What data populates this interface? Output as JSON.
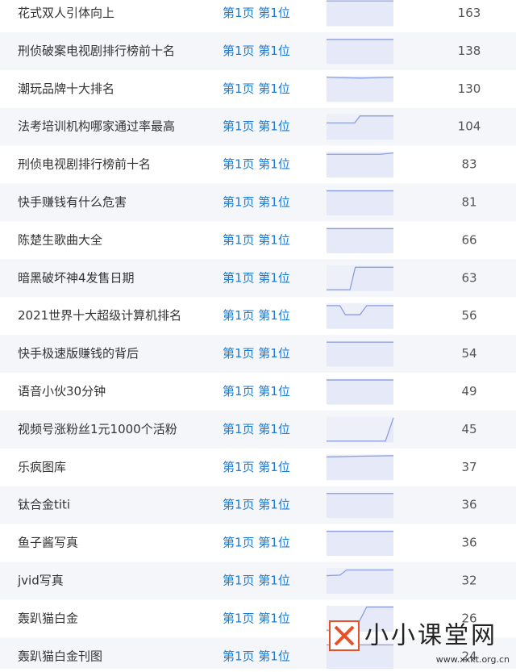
{
  "table": {
    "rows": [
      [
        "花式双人引体向上",
        "第1页 第1位",
        163
      ],
      [
        "刑侦破案电视剧排行榜前十名",
        "第1页 第1位",
        138
      ],
      [
        "潮玩品牌十大排名",
        "第1页 第1位",
        130
      ],
      [
        "法考培训机构哪家通过率最高",
        "第1页 第1位",
        104
      ],
      [
        "刑侦电视剧排行榜前十名",
        "第1页 第1位",
        83
      ],
      [
        "快手赚钱有什么危害",
        "第1页 第1位",
        81
      ],
      [
        "陈楚生歌曲大全",
        "第1页 第1位",
        66
      ],
      [
        "暗黑破坏神4发售日期",
        "第1页 第1位",
        63
      ],
      [
        "2021世界十大超级计算机排名",
        "第1页 第1位",
        56
      ],
      [
        "快手极速版赚钱的背后",
        "第1页 第1位",
        54
      ],
      [
        "语音小伙30分钟",
        "第1页 第1位",
        49
      ],
      [
        "视频号涨粉丝1元1000个活粉",
        "第1页 第1位",
        45
      ],
      [
        "乐疯图库",
        "第1页 第1位",
        37
      ],
      [
        "钛合金titi",
        "第1页 第1位",
        36
      ],
      [
        "鱼子酱写真",
        "第1页 第1位",
        36
      ],
      [
        "jvid写真",
        "第1页 第1位",
        32
      ],
      [
        "轰趴猫白金",
        "第1页 第1位",
        26
      ],
      [
        "轰趴猫白金刊图",
        "第1页 第1位",
        24
      ]
    ]
  },
  "watermark": {
    "name": "小小课堂网",
    "url": "www.xxkt.org.cn"
  }
}
